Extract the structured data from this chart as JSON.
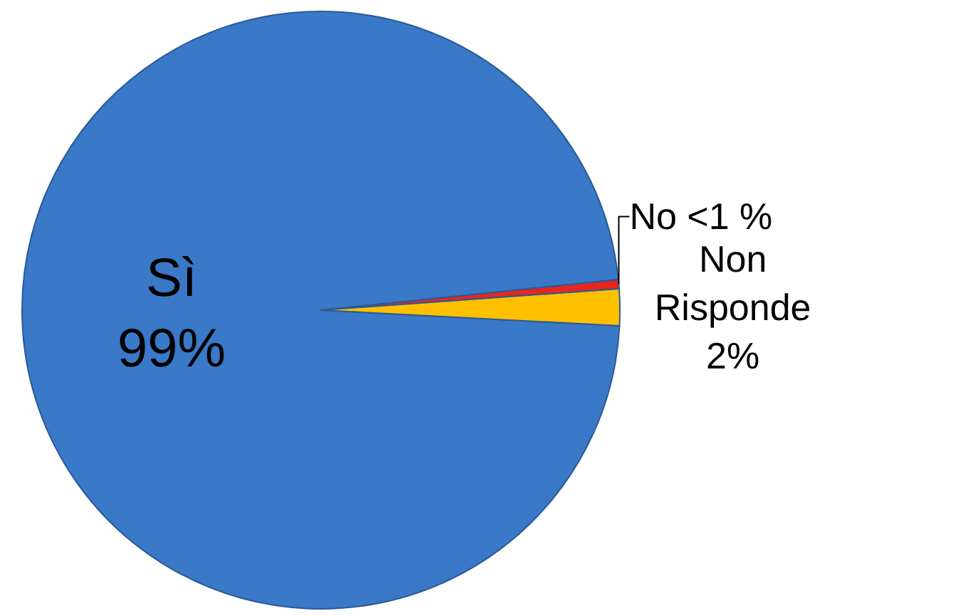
{
  "chart_data": {
    "type": "pie",
    "categories": [
      "Sì",
      "No",
      "Non Risponde"
    ],
    "values": [
      99,
      0.5,
      2
    ],
    "value_labels": [
      "99%",
      "<1 %",
      "2%"
    ],
    "colors": [
      "#3a78c8",
      "#e8251e",
      "#ffc000"
    ],
    "legend": false
  }
}
